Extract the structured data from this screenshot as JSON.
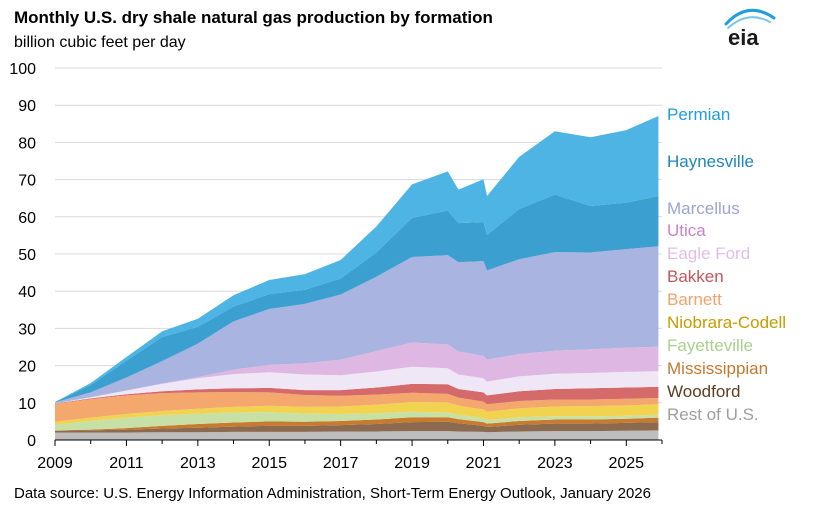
{
  "header": {
    "title": "Monthly U.S. dry shale natural gas production by formation",
    "subtitle": "billion  cubic  feet per day",
    "logo_text": "eia"
  },
  "footer": {
    "source": "Data source: U.S. Energy Information Administration,  Short-Term Energy Outlook, January 2026"
  },
  "chart_data": {
    "type": "area",
    "stacked": true,
    "title": "Monthly U.S. dry shale natural gas production by formation",
    "ylabel": "billion  cubic  feet per day",
    "xlabel": "",
    "ylim": [
      0,
      100
    ],
    "xlim": [
      2009,
      2026
    ],
    "yticks": [
      "0",
      "10",
      "20",
      "30",
      "40",
      "50",
      "60",
      "70",
      "80",
      "90",
      "100"
    ],
    "xticks": [
      "2009",
      "2011",
      "2013",
      "2015",
      "2017",
      "2019",
      "2021",
      "2023",
      "2025"
    ],
    "grid": true,
    "legend_position": "right",
    "x": [
      2009,
      2010,
      2011,
      2012,
      2013,
      2014,
      2015,
      2016,
      2017,
      2018,
      2019,
      2020,
      2020.3,
      2021,
      2021.1,
      2022,
      2023,
      2024,
      2025,
      2025.9
    ],
    "series": [
      {
        "name": "Rest of U.S.",
        "color": "#bdbdbd",
        "values": [
          2.0,
          2.0,
          2.0,
          2.1,
          2.1,
          2.2,
          2.2,
          2.2,
          2.3,
          2.3,
          2.4,
          2.4,
          2.3,
          2.2,
          2.1,
          2.3,
          2.4,
          2.4,
          2.5,
          2.6
        ]
      },
      {
        "name": "Woodford",
        "color": "#8c6a4f",
        "values": [
          0.5,
          0.6,
          0.8,
          1.0,
          1.2,
          1.4,
          1.6,
          1.6,
          1.7,
          2.0,
          2.4,
          2.5,
          2.2,
          1.6,
          1.4,
          1.8,
          2.0,
          2.0,
          2.1,
          2.2
        ]
      },
      {
        "name": "Mississippian",
        "color": "#c87a2e",
        "values": [
          0.1,
          0.2,
          0.4,
          0.7,
          1.0,
          1.1,
          1.2,
          1.1,
          1.1,
          1.2,
          1.3,
          1.2,
          1.1,
          1.0,
          0.9,
          1.0,
          1.1,
          1.1,
          1.1,
          1.2
        ]
      },
      {
        "name": "Fayetteville",
        "color": "#c6e0a6",
        "values": [
          1.5,
          2.3,
          2.8,
          2.9,
          2.8,
          2.7,
          2.5,
          2.2,
          1.9,
          1.7,
          1.5,
          1.3,
          1.2,
          1.1,
          1.0,
          1.0,
          0.9,
          0.9,
          0.8,
          0.8
        ]
      },
      {
        "name": "Niobrara-Codell",
        "color": "#f2d34f",
        "values": [
          0.8,
          0.9,
          1.0,
          1.1,
          1.3,
          1.5,
          1.7,
          1.8,
          2.0,
          2.3,
          2.6,
          2.7,
          2.4,
          2.3,
          2.2,
          2.4,
          2.6,
          2.7,
          2.8,
          2.8
        ]
      },
      {
        "name": "Barnett",
        "color": "#f4a86e",
        "values": [
          4.8,
          5.0,
          5.0,
          4.8,
          4.4,
          4.0,
          3.6,
          3.2,
          2.9,
          2.7,
          2.5,
          2.3,
          2.2,
          2.1,
          2.0,
          2.0,
          1.9,
          1.8,
          1.8,
          1.7
        ]
      },
      {
        "name": "Bakken",
        "color": "#d46a6a",
        "values": [
          0.1,
          0.2,
          0.3,
          0.5,
          0.8,
          1.0,
          1.2,
          1.3,
          1.5,
          1.9,
          2.4,
          2.6,
          2.3,
          2.5,
          2.4,
          2.6,
          2.8,
          3.0,
          3.0,
          3.0
        ]
      },
      {
        "name": "Eagle Ford",
        "color": "#efe7f6",
        "values": [
          0.0,
          0.3,
          1.0,
          2.0,
          3.0,
          3.8,
          4.2,
          4.2,
          4.0,
          4.3,
          4.6,
          4.3,
          3.9,
          3.8,
          3.7,
          4.0,
          4.1,
          4.1,
          4.2,
          4.2
        ]
      },
      {
        "name": "Utica",
        "color": "#deb8e3",
        "values": [
          0.0,
          0.0,
          0.0,
          0.1,
          0.3,
          1.2,
          2.0,
          3.0,
          4.2,
          5.5,
          6.5,
          6.4,
          6.2,
          6.0,
          5.9,
          6.0,
          6.2,
          6.4,
          6.5,
          6.6
        ]
      },
      {
        "name": "Marcellus",
        "color": "#aab4e0",
        "values": [
          0.3,
          1.3,
          3.5,
          6.0,
          9.0,
          13.0,
          15.0,
          16.0,
          17.5,
          20.0,
          23.0,
          24.0,
          24.0,
          25.5,
          24.0,
          25.5,
          26.5,
          26.0,
          26.5,
          27.0
        ]
      },
      {
        "name": "Haynesville",
        "color": "#3ba0cf",
        "values": [
          0.1,
          2.0,
          4.5,
          6.5,
          4.5,
          4.0,
          4.0,
          3.8,
          4.3,
          6.5,
          10.5,
          12.0,
          10.5,
          10.5,
          9.5,
          13.5,
          15.5,
          12.5,
          12.5,
          13.5
        ]
      },
      {
        "name": "Permian",
        "color": "#4db4e3",
        "values": [
          0.0,
          0.5,
          1.0,
          1.5,
          2.2,
          3.0,
          3.8,
          4.2,
          5.0,
          7.0,
          9.0,
          10.5,
          9.0,
          11.5,
          10.5,
          14.0,
          17.0,
          18.5,
          19.5,
          21.5
        ]
      }
    ],
    "legend": [
      {
        "name": "Permian",
        "color": "#1f9ed9"
      },
      {
        "name": "Haynesville",
        "color": "#1f86bd"
      },
      {
        "name": "Marcellus",
        "color": "#9aa4d6"
      },
      {
        "name": "Utica",
        "color": "#c983cc"
      },
      {
        "name": "Eagle Ford",
        "color": "#e2bde6"
      },
      {
        "name": "Bakken",
        "color": "#c4565a"
      },
      {
        "name": "Barnett",
        "color": "#f2a36a"
      },
      {
        "name": "Niobrara-Codell",
        "color": "#c89a00"
      },
      {
        "name": "Fayetteville",
        "color": "#a9d18e"
      },
      {
        "name": "Mississippian",
        "color": "#c7782f"
      },
      {
        "name": "Woodford",
        "color": "#5c3e1f"
      },
      {
        "name": "Rest of U.S.",
        "color": "#9e9e9e"
      }
    ]
  }
}
